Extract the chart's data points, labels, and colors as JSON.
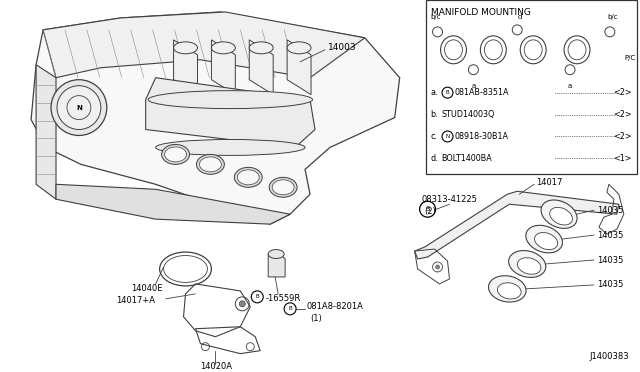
{
  "background_color": "#ffffff",
  "line_color": "#404040",
  "text_color": "#000000",
  "diagram_number": "J1400383",
  "box_title": "MANIFOLD MOUNTING",
  "legend_items": [
    {
      "prefix": "a.",
      "circle_letter": "B",
      "part": "081AB-8351A",
      "qty": "<2>"
    },
    {
      "prefix": "b.",
      "circle_letter": null,
      "part": "STUD14003Q",
      "qty": "<2>"
    },
    {
      "prefix": "c.",
      "circle_letter": "N",
      "part": "08918-30B1A",
      "qty": "<2>"
    },
    {
      "prefix": "d.",
      "circle_letter": null,
      "part": "BOLT1400BA",
      "qty": "<1>"
    }
  ]
}
